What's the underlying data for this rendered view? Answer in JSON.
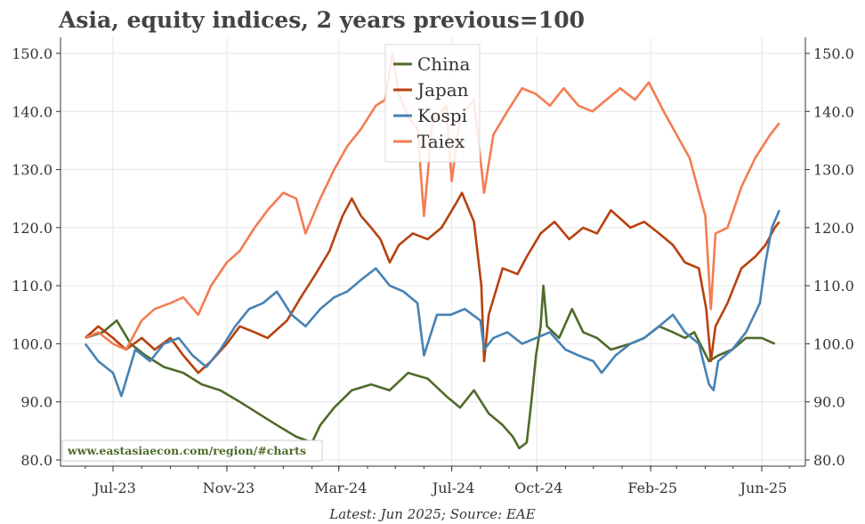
{
  "chart_data": {
    "type": "line",
    "title": "Asia, equity indices, 2 years previous=100",
    "source": "Latest: Jun 2025; Source: EAE",
    "watermark": "www.eastasiaecon.com/region/#charts",
    "xlabel": "",
    "ylabel": "",
    "x_tick_labels": [
      "Jul-23",
      "Nov-23",
      "Mar-24",
      "Jul-24",
      "Oct-24",
      "Feb-25",
      "Jun-25"
    ],
    "y_tick_labels": [
      "80.0",
      "90.0",
      "100.0",
      "110.0",
      "120.0",
      "130.0",
      "140.0",
      "150.0"
    ],
    "ylim": [
      80,
      150
    ],
    "grid": true,
    "legend_position": "top-center",
    "series": [
      {
        "name": "China",
        "color": "#4f6b2a",
        "points": [
          [
            "2023-06-01",
            101
          ],
          [
            "2023-06-20",
            102
          ],
          [
            "2023-07-05",
            104
          ],
          [
            "2023-07-20",
            100
          ],
          [
            "2023-08-05",
            98
          ],
          [
            "2023-08-25",
            96
          ],
          [
            "2023-09-15",
            95
          ],
          [
            "2023-10-05",
            93
          ],
          [
            "2023-10-25",
            92
          ],
          [
            "2023-11-15",
            90
          ],
          [
            "2023-12-05",
            88
          ],
          [
            "2023-12-25",
            86
          ],
          [
            "2024-01-15",
            84
          ],
          [
            "2024-02-01",
            83
          ],
          [
            "2024-02-10",
            86
          ],
          [
            "2024-02-25",
            89
          ],
          [
            "2024-03-15",
            92
          ],
          [
            "2024-04-05",
            93
          ],
          [
            "2024-04-25",
            92
          ],
          [
            "2024-05-15",
            95
          ],
          [
            "2024-06-05",
            94
          ],
          [
            "2024-06-25",
            91
          ],
          [
            "2024-07-10",
            89
          ],
          [
            "2024-07-25",
            92
          ],
          [
            "2024-08-10",
            88
          ],
          [
            "2024-08-25",
            86
          ],
          [
            "2024-09-05",
            84
          ],
          [
            "2024-09-12",
            82
          ],
          [
            "2024-09-20",
            83
          ],
          [
            "2024-09-25",
            90
          ],
          [
            "2024-09-30",
            98
          ],
          [
            "2024-10-05",
            103
          ],
          [
            "2024-10-08",
            110
          ],
          [
            "2024-10-12",
            103
          ],
          [
            "2024-10-25",
            101
          ],
          [
            "2024-11-08",
            106
          ],
          [
            "2024-11-20",
            102
          ],
          [
            "2024-12-05",
            101
          ],
          [
            "2024-12-20",
            99
          ],
          [
            "2025-01-10",
            100
          ],
          [
            "2025-01-25",
            101
          ],
          [
            "2025-02-10",
            103
          ],
          [
            "2025-02-25",
            102
          ],
          [
            "2025-03-10",
            101
          ],
          [
            "2025-03-20",
            102
          ],
          [
            "2025-04-05",
            97
          ],
          [
            "2025-04-15",
            98
          ],
          [
            "2025-04-30",
            99
          ],
          [
            "2025-05-15",
            101
          ],
          [
            "2025-06-01",
            101
          ],
          [
            "2025-06-15",
            100
          ]
        ]
      },
      {
        "name": "Japan",
        "color": "#b7410e",
        "points": [
          [
            "2023-06-01",
            101
          ],
          [
            "2023-06-15",
            103
          ],
          [
            "2023-07-01",
            101
          ],
          [
            "2023-07-15",
            99
          ],
          [
            "2023-08-01",
            101
          ],
          [
            "2023-08-15",
            99
          ],
          [
            "2023-09-01",
            101
          ],
          [
            "2023-09-15",
            98
          ],
          [
            "2023-10-01",
            95
          ],
          [
            "2023-10-15",
            97
          ],
          [
            "2023-11-01",
            100
          ],
          [
            "2023-11-15",
            103
          ],
          [
            "2023-12-01",
            102
          ],
          [
            "2023-12-15",
            101
          ],
          [
            "2024-01-05",
            104
          ],
          [
            "2024-01-20",
            108
          ],
          [
            "2024-02-05",
            112
          ],
          [
            "2024-02-20",
            116
          ],
          [
            "2024-03-05",
            122
          ],
          [
            "2024-03-15",
            125
          ],
          [
            "2024-03-25",
            122
          ],
          [
            "2024-04-05",
            120
          ],
          [
            "2024-04-15",
            118
          ],
          [
            "2024-04-25",
            114
          ],
          [
            "2024-05-05",
            117
          ],
          [
            "2024-05-20",
            119
          ],
          [
            "2024-06-05",
            118
          ],
          [
            "2024-06-20",
            120
          ],
          [
            "2024-07-05",
            124
          ],
          [
            "2024-07-12",
            126
          ],
          [
            "2024-07-25",
            121
          ],
          [
            "2024-08-02",
            110
          ],
          [
            "2024-08-05",
            97
          ],
          [
            "2024-08-10",
            105
          ],
          [
            "2024-08-25",
            113
          ],
          [
            "2024-09-10",
            112
          ],
          [
            "2024-09-20",
            115
          ],
          [
            "2024-10-05",
            119
          ],
          [
            "2024-10-20",
            121
          ],
          [
            "2024-11-05",
            118
          ],
          [
            "2024-11-20",
            120
          ],
          [
            "2024-12-05",
            119
          ],
          [
            "2024-12-20",
            123
          ],
          [
            "2025-01-10",
            120
          ],
          [
            "2025-01-25",
            121
          ],
          [
            "2025-02-10",
            119
          ],
          [
            "2025-02-25",
            117
          ],
          [
            "2025-03-10",
            114
          ],
          [
            "2025-03-25",
            113
          ],
          [
            "2025-04-02",
            106
          ],
          [
            "2025-04-07",
            97
          ],
          [
            "2025-04-12",
            103
          ],
          [
            "2025-04-25",
            107
          ],
          [
            "2025-05-10",
            113
          ],
          [
            "2025-05-25",
            115
          ],
          [
            "2025-06-05",
            117
          ],
          [
            "2025-06-15",
            120
          ],
          [
            "2025-06-20",
            121
          ]
        ]
      },
      {
        "name": "Kospi",
        "color": "#4682b4",
        "points": [
          [
            "2023-06-01",
            100
          ],
          [
            "2023-06-15",
            97
          ],
          [
            "2023-07-01",
            95
          ],
          [
            "2023-07-10",
            91
          ],
          [
            "2023-07-25",
            99
          ],
          [
            "2023-08-10",
            97
          ],
          [
            "2023-08-25",
            100
          ],
          [
            "2023-09-10",
            101
          ],
          [
            "2023-09-25",
            98
          ],
          [
            "2023-10-10",
            96
          ],
          [
            "2023-10-25",
            99
          ],
          [
            "2023-11-10",
            103
          ],
          [
            "2023-11-25",
            106
          ],
          [
            "2023-12-10",
            107
          ],
          [
            "2023-12-25",
            109
          ],
          [
            "2024-01-10",
            105
          ],
          [
            "2024-01-25",
            103
          ],
          [
            "2024-02-10",
            106
          ],
          [
            "2024-02-25",
            108
          ],
          [
            "2024-03-10",
            109
          ],
          [
            "2024-03-25",
            111
          ],
          [
            "2024-04-10",
            113
          ],
          [
            "2024-04-25",
            110
          ],
          [
            "2024-05-10",
            109
          ],
          [
            "2024-05-25",
            107
          ],
          [
            "2024-06-01",
            98
          ],
          [
            "2024-06-15",
            105
          ],
          [
            "2024-06-30",
            105
          ],
          [
            "2024-07-15",
            106
          ],
          [
            "2024-08-01",
            104
          ],
          [
            "2024-08-05",
            99
          ],
          [
            "2024-08-15",
            101
          ],
          [
            "2024-08-30",
            102
          ],
          [
            "2024-09-15",
            100
          ],
          [
            "2024-09-30",
            101
          ],
          [
            "2024-10-15",
            102
          ],
          [
            "2024-11-01",
            99
          ],
          [
            "2024-11-15",
            98
          ],
          [
            "2024-12-01",
            97
          ],
          [
            "2024-12-10",
            95
          ],
          [
            "2024-12-25",
            98
          ],
          [
            "2025-01-10",
            100
          ],
          [
            "2025-01-25",
            101
          ],
          [
            "2025-02-10",
            103
          ],
          [
            "2025-02-25",
            105
          ],
          [
            "2025-03-10",
            102
          ],
          [
            "2025-03-25",
            100
          ],
          [
            "2025-04-05",
            93
          ],
          [
            "2025-04-10",
            92
          ],
          [
            "2025-04-15",
            97
          ],
          [
            "2025-04-30",
            99
          ],
          [
            "2025-05-15",
            102
          ],
          [
            "2025-05-30",
            107
          ],
          [
            "2025-06-05",
            114
          ],
          [
            "2025-06-12",
            120
          ],
          [
            "2025-06-20",
            123
          ]
        ]
      },
      {
        "name": "Taiex",
        "color": "#f47c52",
        "points": [
          [
            "2023-06-01",
            101
          ],
          [
            "2023-06-15",
            102
          ],
          [
            "2023-07-01",
            100
          ],
          [
            "2023-07-15",
            99
          ],
          [
            "2023-08-01",
            104
          ],
          [
            "2023-08-15",
            106
          ],
          [
            "2023-09-01",
            107
          ],
          [
            "2023-09-15",
            108
          ],
          [
            "2023-10-01",
            105
          ],
          [
            "2023-10-15",
            110
          ],
          [
            "2023-11-01",
            114
          ],
          [
            "2023-11-15",
            116
          ],
          [
            "2023-12-01",
            120
          ],
          [
            "2023-12-15",
            123
          ],
          [
            "2024-01-01",
            126
          ],
          [
            "2024-01-15",
            125
          ],
          [
            "2024-01-25",
            119
          ],
          [
            "2024-02-10",
            125
          ],
          [
            "2024-02-25",
            130
          ],
          [
            "2024-03-10",
            134
          ],
          [
            "2024-03-25",
            137
          ],
          [
            "2024-04-10",
            141
          ],
          [
            "2024-04-20",
            142
          ],
          [
            "2024-04-28",
            150
          ],
          [
            "2024-05-05",
            143
          ],
          [
            "2024-05-15",
            139
          ],
          [
            "2024-05-25",
            137
          ],
          [
            "2024-06-01",
            122
          ],
          [
            "2024-06-10",
            138
          ],
          [
            "2024-06-25",
            141
          ],
          [
            "2024-07-01",
            128
          ],
          [
            "2024-07-10",
            139
          ],
          [
            "2024-07-25",
            142
          ],
          [
            "2024-08-05",
            126
          ],
          [
            "2024-08-15",
            136
          ],
          [
            "2024-08-30",
            140
          ],
          [
            "2024-09-15",
            144
          ],
          [
            "2024-09-30",
            143
          ],
          [
            "2024-10-15",
            141
          ],
          [
            "2024-10-30",
            144
          ],
          [
            "2024-11-15",
            141
          ],
          [
            "2024-11-30",
            140
          ],
          [
            "2024-12-15",
            142
          ],
          [
            "2024-12-30",
            144
          ],
          [
            "2025-01-15",
            142
          ],
          [
            "2025-01-30",
            145
          ],
          [
            "2025-02-15",
            140
          ],
          [
            "2025-03-01",
            136
          ],
          [
            "2025-03-15",
            132
          ],
          [
            "2025-04-01",
            122
          ],
          [
            "2025-04-07",
            106
          ],
          [
            "2025-04-12",
            119
          ],
          [
            "2025-04-25",
            120
          ],
          [
            "2025-05-10",
            127
          ],
          [
            "2025-05-25",
            132
          ],
          [
            "2025-06-10",
            136
          ],
          [
            "2025-06-20",
            138
          ]
        ]
      }
    ]
  }
}
